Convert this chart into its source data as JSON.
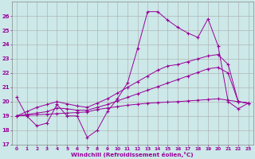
{
  "xlabel": "Windchill (Refroidissement éolien,°C)",
  "x": [
    0,
    1,
    2,
    3,
    4,
    5,
    6,
    7,
    8,
    9,
    10,
    11,
    12,
    13,
    14,
    15,
    16,
    17,
    18,
    19,
    20,
    21,
    22,
    23
  ],
  "y_jagged": [
    20.3,
    19.0,
    18.3,
    18.5,
    19.8,
    19.0,
    19.0,
    17.5,
    18.0,
    19.3,
    20.2,
    21.3,
    23.7,
    26.3,
    26.3,
    25.7,
    25.2,
    24.8,
    24.5,
    25.8,
    23.9,
    20.0,
    19.5,
    19.9
  ],
  "y_upper_straight": [
    19.0,
    19.3,
    19.6,
    19.8,
    20.0,
    19.85,
    19.7,
    19.6,
    19.9,
    20.2,
    20.6,
    21.0,
    21.4,
    21.8,
    22.2,
    22.5,
    22.6,
    22.8,
    23.0,
    23.2,
    23.3,
    22.6,
    20.0,
    19.9
  ],
  "y_mid_straight": [
    19.0,
    19.1,
    19.2,
    19.3,
    19.55,
    19.5,
    19.4,
    19.4,
    19.6,
    19.8,
    20.05,
    20.3,
    20.55,
    20.8,
    21.05,
    21.3,
    21.55,
    21.8,
    22.05,
    22.3,
    22.4,
    22.0,
    20.0,
    19.9
  ],
  "y_flat_straight": [
    19.0,
    19.04,
    19.08,
    19.12,
    19.16,
    19.2,
    19.24,
    19.28,
    19.45,
    19.55,
    19.65,
    19.75,
    19.82,
    19.89,
    19.93,
    19.97,
    20.0,
    20.05,
    20.1,
    20.15,
    20.2,
    20.1,
    20.0,
    19.9
  ],
  "color": "#990099",
  "bg_color": "#cce8e8",
  "grid_color": "#aaaaaa",
  "ylim": [
    17,
    27
  ],
  "xlim": [
    -0.5,
    23.5
  ]
}
